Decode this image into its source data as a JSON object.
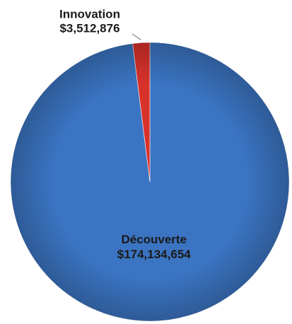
{
  "chart_data": {
    "type": "pie",
    "categories": [
      "Découverte",
      "Innovation"
    ],
    "values": [
      174134654,
      3512876
    ],
    "value_labels": [
      "$174,134,654",
      "$3,512,876"
    ],
    "colors": [
      "#3b74c2",
      "#d8322b"
    ]
  }
}
